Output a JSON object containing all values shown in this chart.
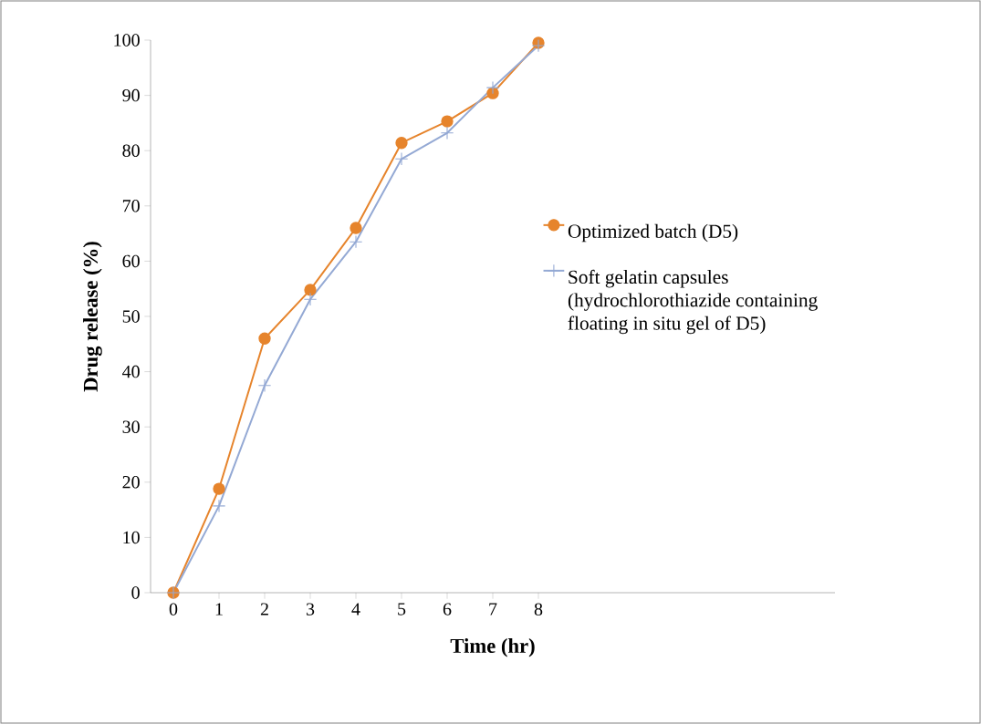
{
  "chart_data": {
    "type": "line",
    "xlabel": "Time (hr)",
    "ylabel": "Drug release (%)",
    "x": [
      0,
      1,
      2,
      3,
      4,
      5,
      6,
      7,
      8
    ],
    "series": [
      {
        "name": "Optimized batch (D5)",
        "color": "#e6842c",
        "marker": "circle",
        "values": [
          0,
          18.8,
          46.0,
          54.8,
          66.0,
          81.4,
          85.3,
          90.4,
          99.5
        ]
      },
      {
        "name": "Soft gelatin capsules (hydrochlorothiazide containing floating in situ gel of D5)",
        "color": "#94a9d4",
        "marker": "cross",
        "values": [
          0,
          15.7,
          37.5,
          53.1,
          63.5,
          78.5,
          83.2,
          91.4,
          99.0
        ]
      }
    ],
    "xlim": [
      -0.5,
      14.5
    ],
    "xticks": [
      0,
      1,
      2,
      3,
      4,
      5,
      6,
      7,
      8
    ],
    "ylim": [
      0,
      100
    ],
    "yticks": [
      0,
      10,
      20,
      30,
      40,
      50,
      60,
      70,
      80,
      90,
      100
    ],
    "grid": false,
    "legend": "right",
    "line_style": "solid"
  }
}
